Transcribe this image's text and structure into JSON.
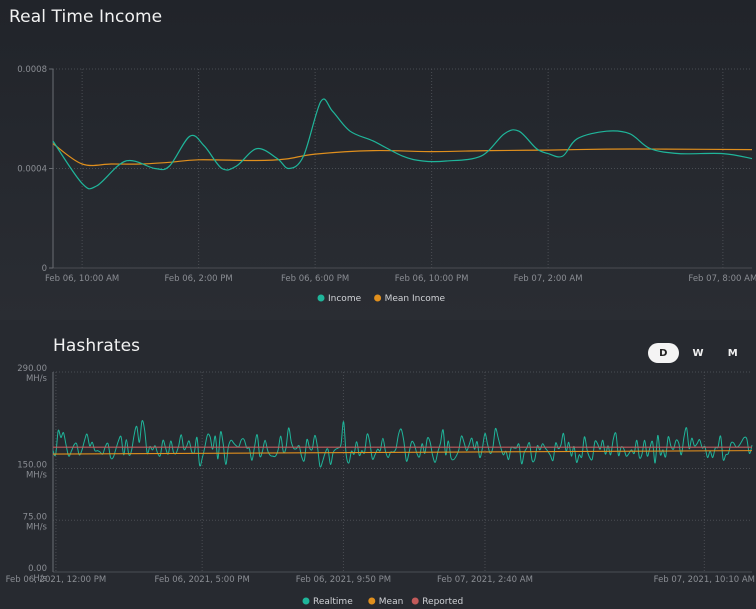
{
  "income_section": {
    "title": "Real Time Income"
  },
  "hashrate_section": {
    "title": "Hashrates",
    "range_buttons": [
      {
        "label": "D",
        "active": true
      },
      {
        "label": "W",
        "active": false
      },
      {
        "label": "M",
        "active": false
      }
    ]
  },
  "colors": {
    "teal": "#1fb59a",
    "orange": "#e08f1d",
    "red": "#c25a5a"
  },
  "chart_data": [
    {
      "type": "line",
      "title": "Real Time Income",
      "x_ticks": [
        "Feb 06, 10:00 AM",
        "Feb 06, 2:00 PM",
        "Feb 06, 6:00 PM",
        "Feb 06, 10:00 PM",
        "Feb 07, 2:00 AM",
        "Feb 07, 8:00 AM"
      ],
      "x_tick_hours": [
        10,
        14,
        18,
        22,
        26,
        32
      ],
      "x_range_hours": [
        9,
        33
      ],
      "y_ticks": [
        "0",
        "0.0004",
        "0.0008"
      ],
      "ylim": [
        0,
        0.0008
      ],
      "series": [
        {
          "name": "Income",
          "color": "#1fb59a",
          "points": [
            [
              9,
              0.00051
            ],
            [
              10,
              0.00034
            ],
            [
              10.5,
              0.00033
            ],
            [
              11.5,
              0.00043
            ],
            [
              12.5,
              0.0004
            ],
            [
              13,
              0.00041
            ],
            [
              13.7,
              0.00053
            ],
            [
              14.2,
              0.00049
            ],
            [
              14.8,
              0.0004
            ],
            [
              15.3,
              0.00041
            ],
            [
              16,
              0.00048
            ],
            [
              16.7,
              0.00044
            ],
            [
              17.1,
              0.0004
            ],
            [
              17.6,
              0.00045
            ],
            [
              18.2,
              0.00067
            ],
            [
              18.6,
              0.00063
            ],
            [
              19.2,
              0.00055
            ],
            [
              20,
              0.00051
            ],
            [
              21,
              0.00045
            ],
            [
              21.7,
              0.00043
            ],
            [
              22.5,
              0.00043
            ],
            [
              23.7,
              0.00045
            ],
            [
              24.5,
              0.00054
            ],
            [
              25,
              0.00055
            ],
            [
              25.6,
              0.00048
            ],
            [
              26,
              0.00046
            ],
            [
              26.5,
              0.00045
            ],
            [
              27,
              0.00052
            ],
            [
              28,
              0.00055
            ],
            [
              28.8,
              0.00054
            ],
            [
              29.5,
              0.00048
            ],
            [
              30.5,
              0.00046
            ],
            [
              32,
              0.00046
            ],
            [
              33,
              0.00044
            ]
          ]
        },
        {
          "name": "Mean Income",
          "color": "#e08f1d",
          "points": [
            [
              9,
              0.0005
            ],
            [
              10,
              0.000418
            ],
            [
              11,
              0.000418
            ],
            [
              12,
              0.000418
            ],
            [
              13,
              0.000425
            ],
            [
              14,
              0.000435
            ],
            [
              16,
              0.000432
            ],
            [
              17,
              0.000438
            ],
            [
              18,
              0.000458
            ],
            [
              20,
              0.000472
            ],
            [
              22,
              0.000468
            ],
            [
              24,
              0.000472
            ],
            [
              26,
              0.000474
            ],
            [
              28,
              0.000478
            ],
            [
              30,
              0.000478
            ],
            [
              33,
              0.000476
            ]
          ]
        }
      ]
    },
    {
      "type": "line",
      "title": "Hashrates",
      "x_ticks": [
        "Feb 06, 2021, 12:00 PM",
        "Feb 06, 2021, 5:00 PM",
        "Feb 06, 2021, 9:50 PM",
        "Feb 07, 2021, 2:40 AM",
        "Feb 07, 2021, 10:10 AM"
      ],
      "x_tick_hours": [
        12,
        17,
        21.83,
        26.67,
        34.17
      ],
      "x_range_hours": [
        11.9,
        35.8
      ],
      "y_ticks": [
        "0.00 H/s",
        "75.00 MH/s",
        "150.00 MH/s",
        "290.00 MH/s"
      ],
      "ylim": [
        0,
        290
      ],
      "series": [
        {
          "name": "Realtime",
          "color": "#1fb59a",
          "values": [
            176,
            170,
            205,
            195,
            202,
            184,
            168,
            175,
            184,
            186,
            170,
            176,
            190,
            200,
            183,
            188,
            176,
            176,
            174,
            171,
            182,
            186,
            166,
            166,
            178,
            190,
            196,
            170,
            192,
            170,
            176,
            199,
            211,
            188,
            219,
            206,
            172,
            182,
            177,
            183,
            172,
            169,
            191,
            180,
            171,
            190,
            174,
            172,
            183,
            199,
            178,
            182,
            190,
            174,
            174,
            195,
            155,
            165,
            181,
            199,
            196,
            178,
            197,
            164,
            203,
            186,
            156,
            182,
            191,
            187,
            183,
            182,
            192,
            192,
            180,
            179,
            162,
            182,
            199,
            168,
            175,
            191,
            176,
            169,
            168,
            168,
            177,
            197,
            174,
            180,
            209,
            189,
            179,
            179,
            183,
            167,
            162,
            192,
            180,
            178,
            198,
            182,
            153,
            161,
            173,
            178,
            156,
            173,
            178,
            180,
            185,
            218,
            170,
            158,
            175,
            171,
            189,
            169,
            176,
            173,
            200,
            188,
            164,
            170,
            178,
            176,
            194,
            175,
            166,
            174,
            174,
            179,
            200,
            207,
            190,
            161,
            173,
            189,
            185,
            172,
            167,
            186,
            172,
            194,
            189,
            169,
            159,
            174,
            187,
            206,
            170,
            190,
            166,
            163,
            168,
            177,
            197,
            188,
            176,
            185,
            194,
            178,
            189,
            166,
            179,
            201,
            185,
            172,
            180,
            208,
            195,
            181,
            170,
            175,
            163,
            180,
            180,
            180,
            185,
            157,
            173,
            180,
            187,
            162,
            163,
            183,
            177,
            186,
            180,
            175,
            169,
            162,
            187,
            179,
            184,
            201,
            175,
            188,
            168,
            182,
            159,
            170,
            167,
            196,
            177,
            166,
            164,
            189,
            186,
            178,
            191,
            171,
            183,
            170,
            192,
            201,
            169,
            181,
            179,
            168,
            172,
            177,
            172,
            191,
            166,
            171,
            191,
            168,
            180,
            189,
            158,
            198,
            170,
            177,
            167,
            196,
            183,
            178,
            191,
            187,
            170,
            195,
            209,
            179,
            194,
            183,
            186,
            192,
            180,
            182,
            166,
            175,
            166,
            180,
            181,
            197,
            163,
            170,
            172,
            187,
            187,
            181,
            183,
            189,
            195,
            193,
            172,
            184
          ]
        },
        {
          "name": "Mean",
          "color": "#e08f1d",
          "values_range": [
            171,
            176
          ]
        },
        {
          "name": "Reported",
          "color": "#c25a5a",
          "values_range": [
            181,
            181
          ]
        }
      ]
    }
  ]
}
